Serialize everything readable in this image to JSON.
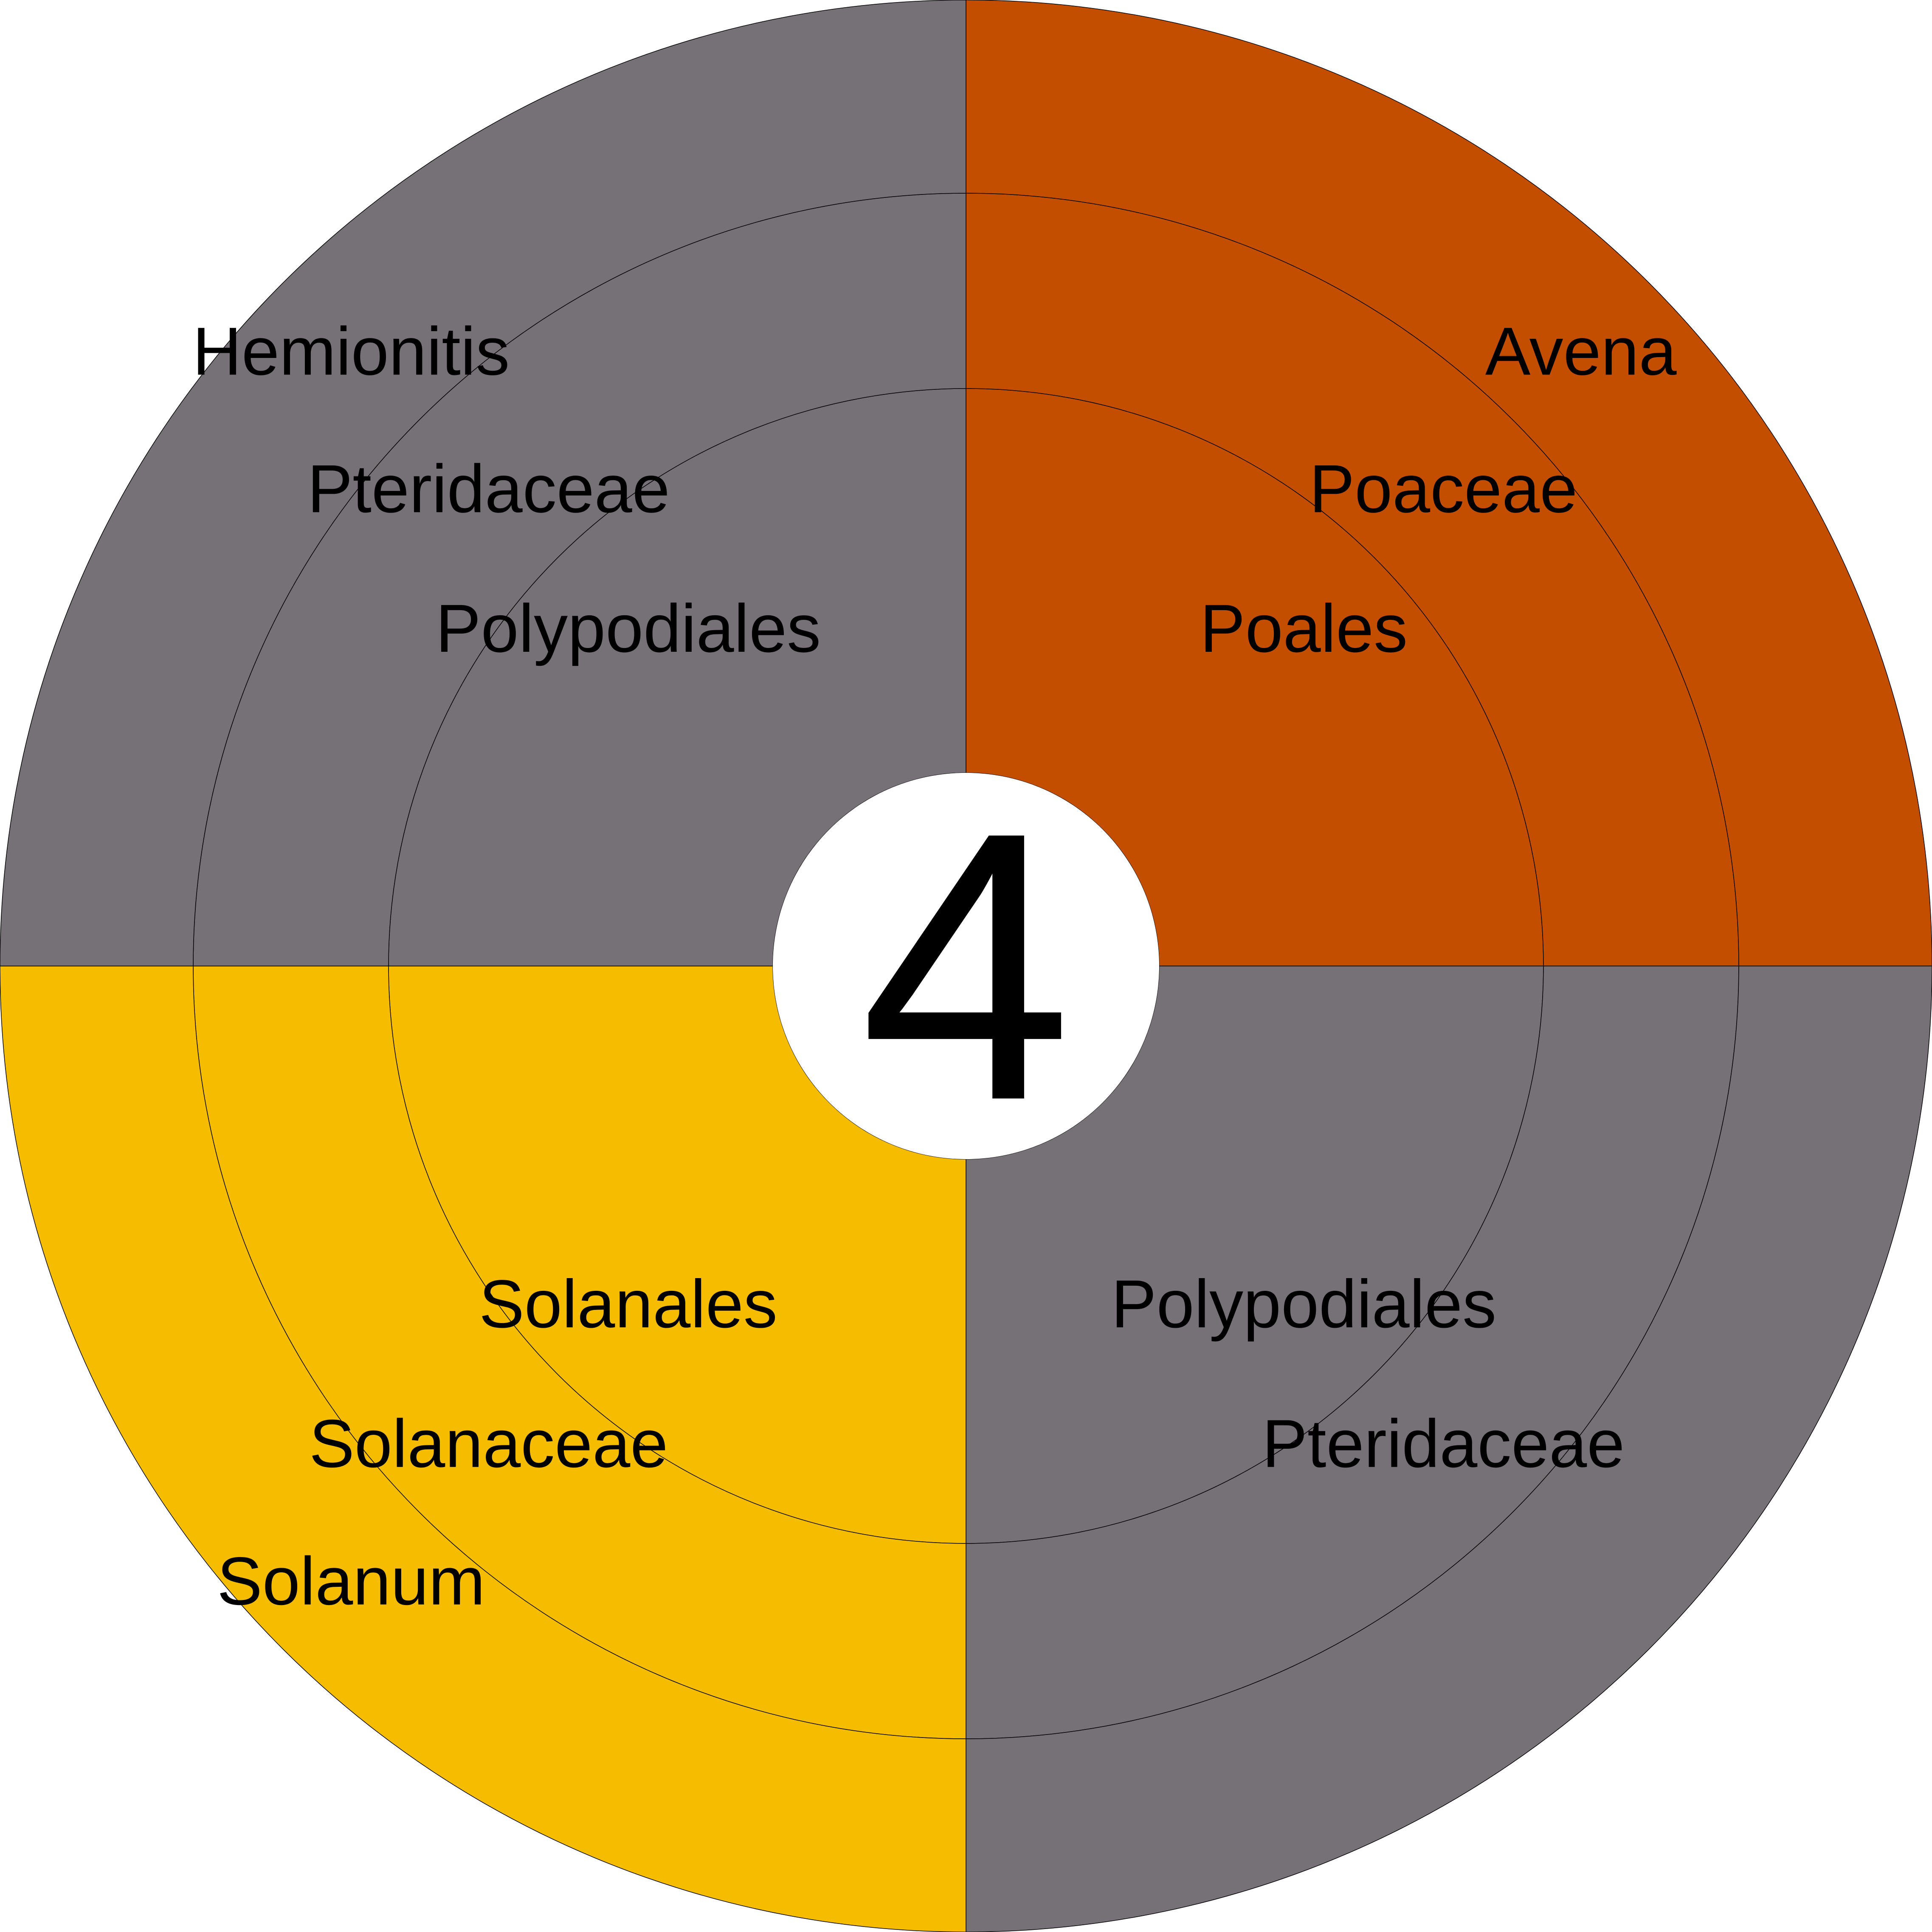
{
  "chart_data": {
    "type": "sunburst",
    "center_label": "4",
    "rings": [
      "order",
      "family",
      "genus"
    ],
    "segments": [
      {
        "order": "Poales",
        "family": "Poaceae",
        "genus": "Avena",
        "value": 1,
        "color": "#C44E00",
        "label_color": "#000000"
      },
      {
        "order": "Polypodiales",
        "family": "Pteridaceae",
        "genus": "",
        "value": 1,
        "color": "#767176",
        "label_color": "#000000"
      },
      {
        "order": "Solanales",
        "family": "Solanaceae",
        "genus": "Solanum",
        "value": 1,
        "color": "#F6BC00",
        "label_color": "#000000"
      },
      {
        "order": "Polypodiales",
        "family": "Pteridaceae",
        "genus": "Hemionitis",
        "value": 1,
        "color": "#767176",
        "label_color": "#000000"
      }
    ]
  }
}
